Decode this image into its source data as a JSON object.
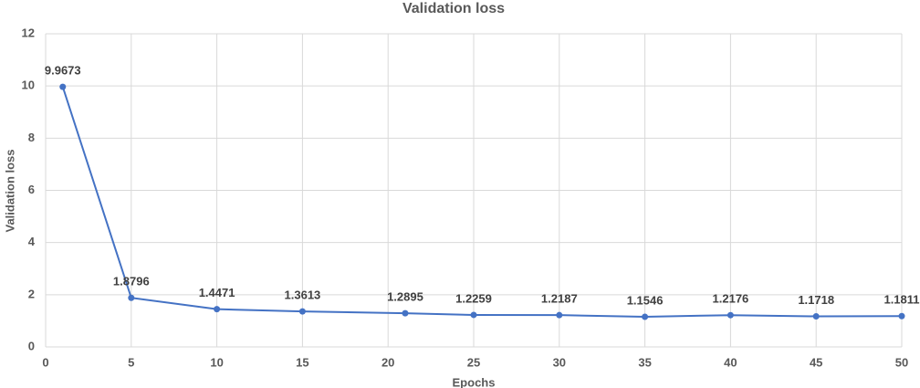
{
  "chart_data": {
    "type": "line",
    "title": "Validation loss",
    "x_label": "Epochs",
    "y_label": "Validation loss",
    "x": [
      1,
      5,
      10,
      15,
      21,
      25,
      30,
      35,
      40,
      45,
      50
    ],
    "series": [
      {
        "name": "Validation loss",
        "color": "#4472c4",
        "values": [
          9.9673,
          1.8796,
          1.4471,
          1.3613,
          1.2895,
          1.2259,
          1.2187,
          1.1546,
          1.2176,
          1.1718,
          1.1811
        ]
      }
    ],
    "xlim": [
      0,
      50
    ],
    "xticks": [
      0,
      5,
      10,
      15,
      20,
      25,
      30,
      35,
      40,
      45,
      50
    ],
    "ylim": [
      0,
      12
    ],
    "yticks": [
      0,
      2,
      4,
      6,
      8,
      10,
      12
    ],
    "grid": true
  }
}
